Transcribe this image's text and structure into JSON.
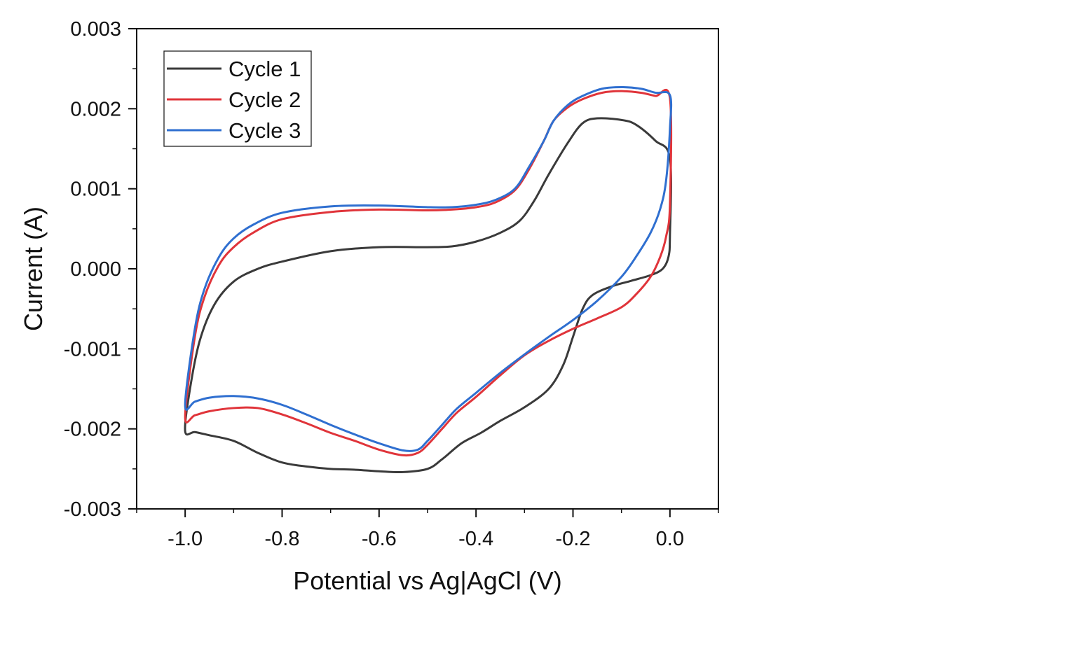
{
  "chart_data": {
    "type": "line",
    "title": "",
    "xlabel": "Potential vs Ag|AgCl (V)",
    "ylabel": "Current (A)",
    "xlim": [
      -1.1,
      0.1
    ],
    "ylim": [
      -0.003,
      0.003
    ],
    "x_ticks": [
      -1.0,
      -0.8,
      -0.6,
      -0.4,
      -0.2,
      0.0
    ],
    "x_tick_labels": [
      "-1.0",
      "-0.8",
      "-0.6",
      "-0.4",
      "-0.2",
      "0.0"
    ],
    "y_ticks": [
      -0.003,
      -0.002,
      -0.001,
      0.0,
      0.001,
      0.002,
      0.003
    ],
    "y_tick_labels": [
      "-0.003",
      "-0.002",
      "-0.001",
      "0.000",
      "0.001",
      "0.002",
      "0.003"
    ],
    "grid": false,
    "legend_position": "top-left",
    "series": [
      {
        "name": "Cycle 1",
        "color": "#3a3a3a",
        "points": [
          [
            0.0,
            0.00138
          ],
          [
            -0.03,
            0.0016
          ],
          [
            -0.07,
            0.0018
          ],
          [
            -0.1,
            0.00186
          ],
          [
            -0.15,
            0.00188
          ],
          [
            -0.18,
            0.00182
          ],
          [
            -0.21,
            0.00158
          ],
          [
            -0.25,
            0.00118
          ],
          [
            -0.28,
            0.00085
          ],
          [
            -0.31,
            0.0006
          ],
          [
            -0.35,
            0.00045
          ],
          [
            -0.4,
            0.00034
          ],
          [
            -0.45,
            0.00028
          ],
          [
            -0.5,
            0.00027
          ],
          [
            -0.6,
            0.00027
          ],
          [
            -0.7,
            0.00022
          ],
          [
            -0.8,
            9e-05
          ],
          [
            -0.85,
            0.0
          ],
          [
            -0.9,
            -0.00016
          ],
          [
            -0.94,
            -0.00045
          ],
          [
            -0.97,
            -0.0009
          ],
          [
            -0.99,
            -0.0015
          ],
          [
            -1.0,
            -0.00203
          ],
          [
            -0.98,
            -0.00204
          ],
          [
            -0.95,
            -0.00208
          ],
          [
            -0.9,
            -0.00215
          ],
          [
            -0.85,
            -0.0023
          ],
          [
            -0.8,
            -0.00242
          ],
          [
            -0.75,
            -0.00247
          ],
          [
            -0.7,
            -0.0025
          ],
          [
            -0.65,
            -0.00251
          ],
          [
            -0.6,
            -0.00253
          ],
          [
            -0.55,
            -0.00254
          ],
          [
            -0.5,
            -0.0025
          ],
          [
            -0.47,
            -0.00238
          ],
          [
            -0.43,
            -0.00218
          ],
          [
            -0.39,
            -0.00205
          ],
          [
            -0.35,
            -0.0019
          ],
          [
            -0.3,
            -0.00173
          ],
          [
            -0.25,
            -0.0015
          ],
          [
            -0.22,
            -0.0012
          ],
          [
            -0.2,
            -0.00085
          ],
          [
            -0.18,
            -0.0005
          ],
          [
            -0.16,
            -0.00033
          ],
          [
            -0.12,
            -0.00022
          ],
          [
            -0.08,
            -0.00015
          ],
          [
            -0.04,
            -8e-05
          ],
          [
            -0.015,
            0.0
          ],
          [
            -0.003,
            0.00015
          ],
          [
            0.0,
            0.00042
          ]
        ]
      },
      {
        "name": "Cycle 2",
        "color": "#e0343a",
        "points": [
          [
            0.0,
            0.00213
          ],
          [
            -0.03,
            0.00216
          ],
          [
            -0.06,
            0.0022
          ],
          [
            -0.1,
            0.00222
          ],
          [
            -0.14,
            0.0022
          ],
          [
            -0.18,
            0.00212
          ],
          [
            -0.21,
            0.00202
          ],
          [
            -0.24,
            0.00185
          ],
          [
            -0.26,
            0.0016
          ],
          [
            -0.29,
            0.00125
          ],
          [
            -0.32,
            0.00098
          ],
          [
            -0.36,
            0.00083
          ],
          [
            -0.4,
            0.00077
          ],
          [
            -0.45,
            0.00074
          ],
          [
            -0.5,
            0.00073
          ],
          [
            -0.6,
            0.00074
          ],
          [
            -0.7,
            0.00071
          ],
          [
            -0.8,
            0.00062
          ],
          [
            -0.86,
            0.00045
          ],
          [
            -0.9,
            0.00027
          ],
          [
            -0.93,
            5e-05
          ],
          [
            -0.96,
            -0.00035
          ],
          [
            -0.98,
            -0.00085
          ],
          [
            -1.0,
            -0.00185
          ],
          [
            -0.98,
            -0.00183
          ],
          [
            -0.95,
            -0.00178
          ],
          [
            -0.9,
            -0.00174
          ],
          [
            -0.85,
            -0.00174
          ],
          [
            -0.8,
            -0.00182
          ],
          [
            -0.75,
            -0.00193
          ],
          [
            -0.7,
            -0.00205
          ],
          [
            -0.65,
            -0.00215
          ],
          [
            -0.6,
            -0.00226
          ],
          [
            -0.55,
            -0.00233
          ],
          [
            -0.52,
            -0.0023
          ],
          [
            -0.5,
            -0.0022
          ],
          [
            -0.47,
            -0.002
          ],
          [
            -0.44,
            -0.0018
          ],
          [
            -0.4,
            -0.0016
          ],
          [
            -0.35,
            -0.00133
          ],
          [
            -0.3,
            -0.00108
          ],
          [
            -0.25,
            -0.0009
          ],
          [
            -0.2,
            -0.00075
          ],
          [
            -0.15,
            -0.00062
          ],
          [
            -0.1,
            -0.00048
          ],
          [
            -0.07,
            -0.00032
          ],
          [
            -0.04,
            -0.0001
          ],
          [
            -0.02,
            0.00015
          ],
          [
            -0.008,
            0.0004
          ],
          [
            0.0,
            0.0008
          ]
        ]
      },
      {
        "name": "Cycle 3",
        "color": "#2f6fd0",
        "points": [
          [
            0.0,
            0.00217
          ],
          [
            -0.03,
            0.0022
          ],
          [
            -0.06,
            0.00225
          ],
          [
            -0.1,
            0.00227
          ],
          [
            -0.14,
            0.00225
          ],
          [
            -0.18,
            0.00216
          ],
          [
            -0.21,
            0.00205
          ],
          [
            -0.24,
            0.00185
          ],
          [
            -0.26,
            0.0016
          ],
          [
            -0.29,
            0.00128
          ],
          [
            -0.32,
            0.001
          ],
          [
            -0.36,
            0.00086
          ],
          [
            -0.4,
            0.0008
          ],
          [
            -0.45,
            0.00077
          ],
          [
            -0.5,
            0.00077
          ],
          [
            -0.6,
            0.00079
          ],
          [
            -0.7,
            0.00078
          ],
          [
            -0.8,
            0.0007
          ],
          [
            -0.86,
            0.00055
          ],
          [
            -0.9,
            0.00038
          ],
          [
            -0.93,
            0.00015
          ],
          [
            -0.96,
            -0.00025
          ],
          [
            -0.98,
            -0.00075
          ],
          [
            -1.0,
            -0.0017
          ],
          [
            -0.98,
            -0.00166
          ],
          [
            -0.95,
            -0.00161
          ],
          [
            -0.9,
            -0.00159
          ],
          [
            -0.85,
            -0.00162
          ],
          [
            -0.8,
            -0.0017
          ],
          [
            -0.75,
            -0.00182
          ],
          [
            -0.7,
            -0.00195
          ],
          [
            -0.65,
            -0.00207
          ],
          [
            -0.6,
            -0.00218
          ],
          [
            -0.55,
            -0.00227
          ],
          [
            -0.52,
            -0.00226
          ],
          [
            -0.5,
            -0.00215
          ],
          [
            -0.47,
            -0.00195
          ],
          [
            -0.44,
            -0.00175
          ],
          [
            -0.4,
            -0.00155
          ],
          [
            -0.35,
            -0.0013
          ],
          [
            -0.3,
            -0.00107
          ],
          [
            -0.25,
            -0.00085
          ],
          [
            -0.2,
            -0.00064
          ],
          [
            -0.15,
            -0.0004
          ],
          [
            -0.1,
            -0.0001
          ],
          [
            -0.07,
            0.00015
          ],
          [
            -0.04,
            0.00045
          ],
          [
            -0.02,
            0.00075
          ],
          [
            -0.008,
            0.0011
          ],
          [
            0.0,
            0.00175
          ]
        ]
      }
    ]
  }
}
